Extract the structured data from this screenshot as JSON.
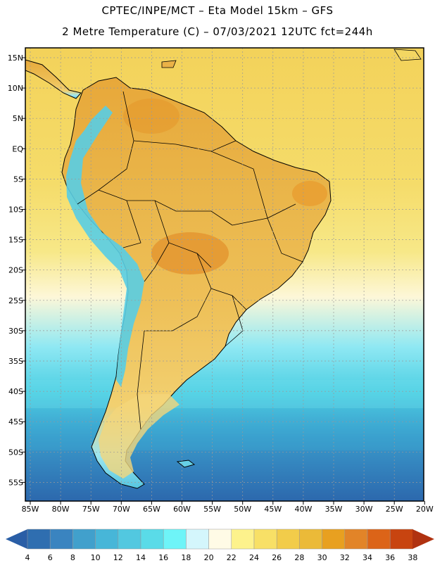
{
  "header": {
    "line1": "CPTEC/INPE/MCT –  Eta Model 15km – GFS",
    "line2": "2 Metre Temperature (C) – 07/03/2021 12UTC fct=244h"
  },
  "map": {
    "lon_labels": [
      "85W",
      "80W",
      "75W",
      "70W",
      "65W",
      "60W",
      "55W",
      "50W",
      "45W",
      "40W",
      "35W",
      "30W",
      "25W",
      "20W"
    ],
    "lat_labels": [
      "15N",
      "10N",
      "5N",
      "EQ",
      "5S",
      "10S",
      "15S",
      "20S",
      "25S",
      "30S",
      "35S",
      "40S",
      "45S",
      "50S",
      "55S"
    ]
  },
  "colorbar": {
    "labels": [
      "4",
      "6",
      "8",
      "10",
      "12",
      "14",
      "16",
      "18",
      "20",
      "22",
      "24",
      "26",
      "28",
      "30",
      "32",
      "34",
      "36",
      "38"
    ],
    "colors": [
      "#2f6eb0",
      "#3a84c0",
      "#41a0cc",
      "#47b6d8",
      "#52c8e0",
      "#5adbe8",
      "#6ef4f8",
      "#d4f6fc",
      "#fffbe6",
      "#fdf28c",
      "#f8e066",
      "#f2cc4a",
      "#ebba38",
      "#e8a020",
      "#e28428",
      "#dc6418",
      "#c84410"
    ],
    "low_color": "#2a5ea6",
    "high_color": "#b03210"
  }
}
